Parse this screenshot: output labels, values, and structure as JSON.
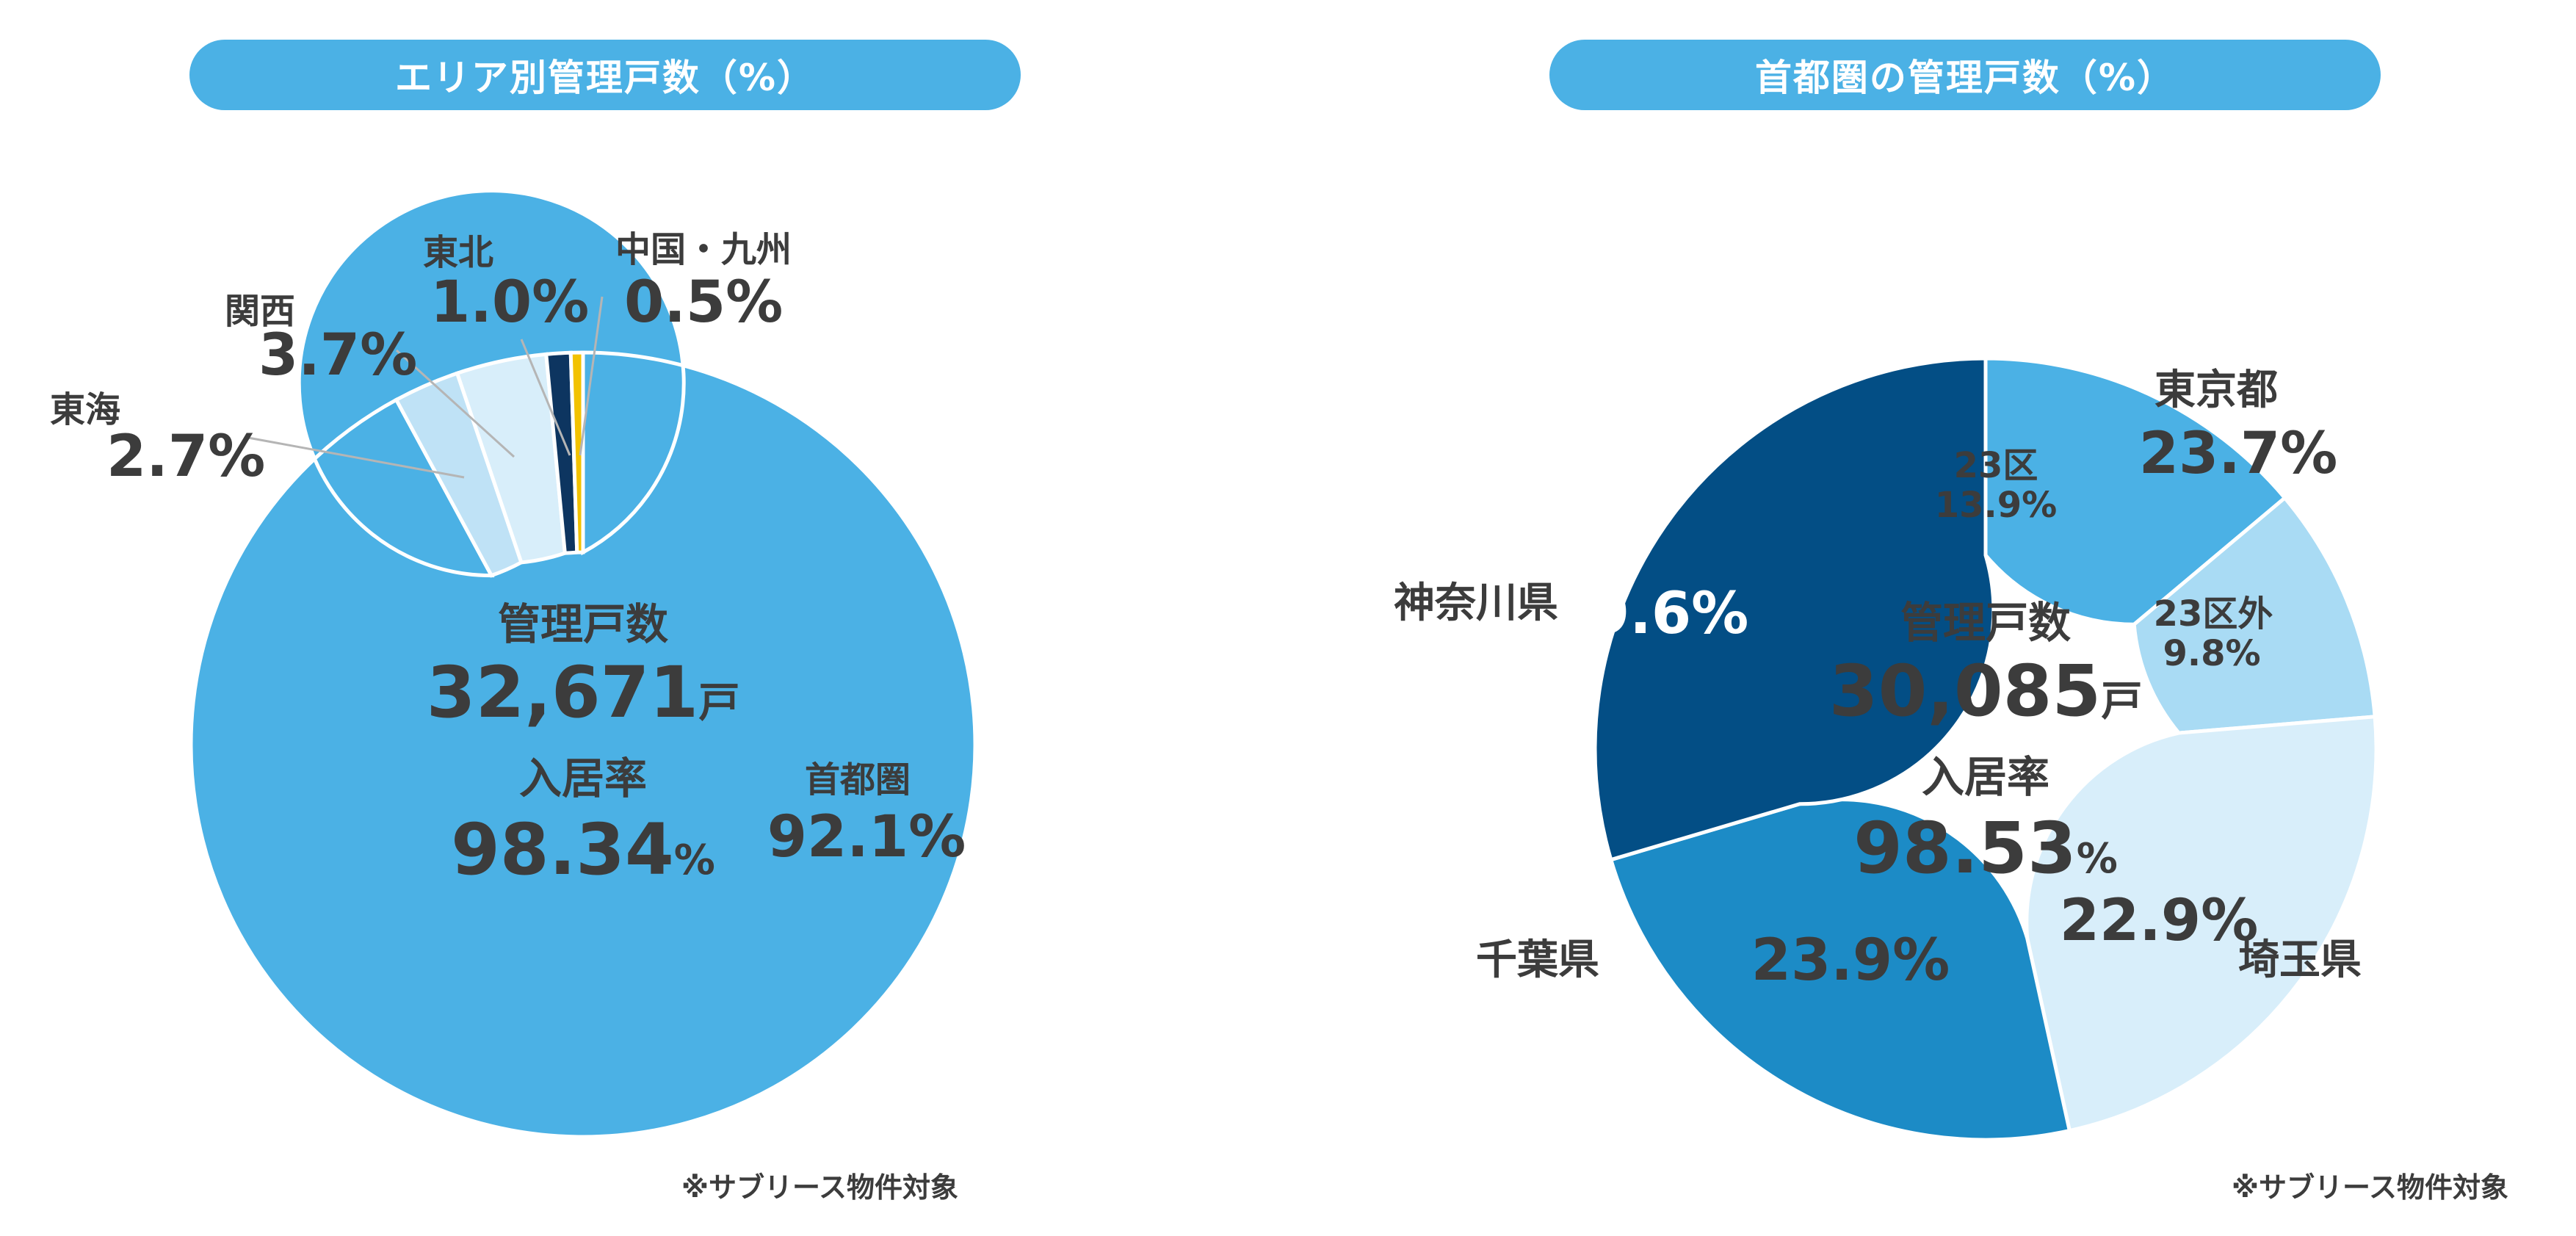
{
  "chart_data": [
    {
      "type": "pie",
      "title": "エリア別管理戸数（%）",
      "donut": true,
      "slices": [
        {
          "name": "首都圏",
          "value": 92.1,
          "label": "92.1%",
          "color": "#4bb1e5"
        },
        {
          "name": "東海",
          "value": 2.7,
          "label": "2.7%",
          "color": "#bfe2f6"
        },
        {
          "name": "関西",
          "value": 3.7,
          "label": "3.7%",
          "color": "#d8eefa"
        },
        {
          "name": "東北",
          "value": 1.0,
          "label": "1.0%",
          "color": "#0d3560"
        },
        {
          "name": "中国・九州",
          "value": 0.5,
          "label": "0.5%",
          "color": "#f2c200"
        }
      ],
      "center": {
        "label1": "管理戸数",
        "value1": "32,671",
        "unit1": "戸",
        "label2": "入居率",
        "value2": "98.34",
        "unit2": "%"
      },
      "note": "※サブリース物件対象"
    },
    {
      "type": "pie",
      "title": "首都圏の管理戸数（%）",
      "donut": true,
      "slices": [
        {
          "name": "23区",
          "value": 13.9,
          "label": "13.9%",
          "color": "#4bb1e5"
        },
        {
          "name": "23区外",
          "value": 9.8,
          "label": "9.8%",
          "color": "#a9dbf4"
        },
        {
          "name": "埼玉県",
          "value": 22.9,
          "label": "22.9%",
          "color": "#d8eefa"
        },
        {
          "name": "千葉県",
          "value": 23.9,
          "label": "23.9%",
          "color": "#1c8bc6"
        },
        {
          "name": "神奈川県",
          "value": 29.6,
          "label": "29.6%",
          "color": "#034e85"
        }
      ],
      "group": {
        "name": "東京都",
        "label": "23.7%"
      },
      "center": {
        "label1": "管理戸数",
        "value1": "30,085",
        "unit1": "戸",
        "label2": "入居率",
        "value2": "98.53",
        "unit2": "%"
      },
      "note": "※サブリース物件対象"
    }
  ]
}
